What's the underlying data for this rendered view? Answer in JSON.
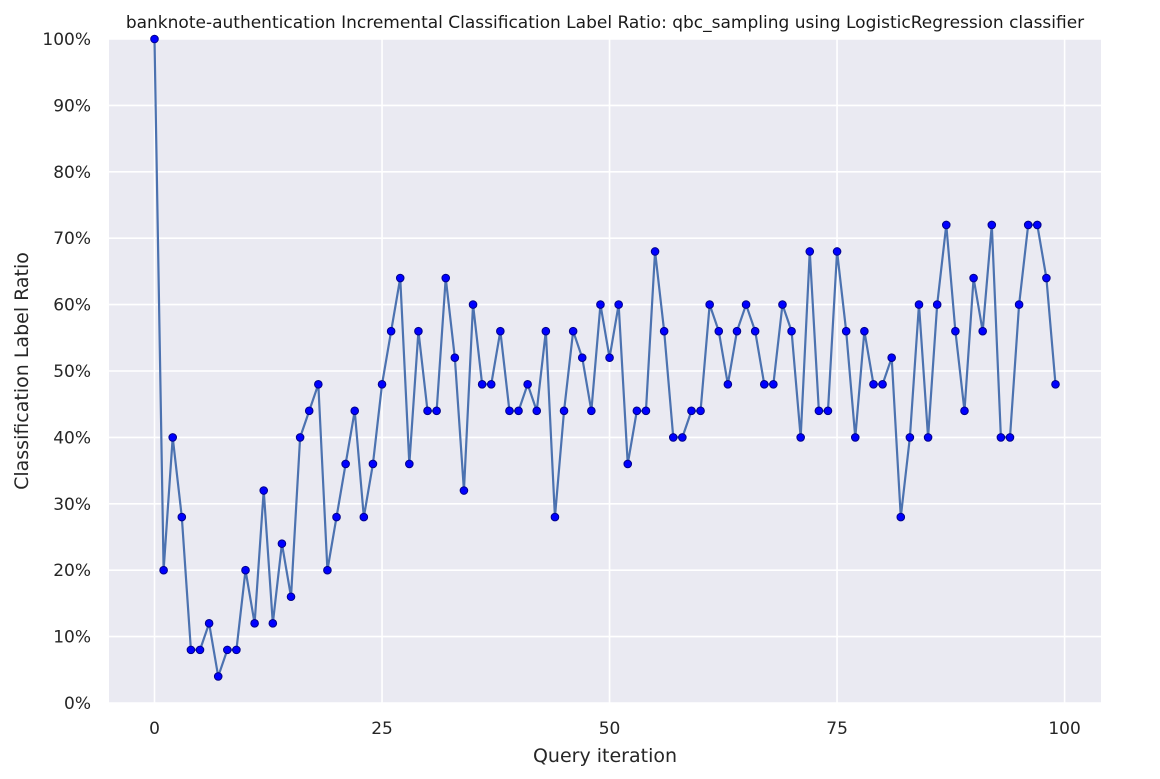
{
  "chart_data": {
    "type": "line",
    "title": "banknote-authentication Incremental Classification Label Ratio: qbc_sampling using LogisticRegression classifier",
    "xlabel": "Query iteration",
    "ylabel": "Classification Label Ratio",
    "xlim": [
      -5,
      104
    ],
    "ylim": [
      0,
      100
    ],
    "x_ticks": [
      0,
      25,
      50,
      75,
      100
    ],
    "x_tick_labels": [
      "0",
      "25",
      "50",
      "75",
      "100"
    ],
    "y_ticks": [
      0,
      10,
      20,
      30,
      40,
      50,
      60,
      70,
      80,
      90,
      100
    ],
    "y_tick_labels": [
      "0%",
      "10%",
      "20%",
      "30%",
      "40%",
      "50%",
      "60%",
      "70%",
      "80%",
      "90%",
      "100%"
    ],
    "grid": true,
    "colors": {
      "background": "#eaeaf2",
      "grid": "#ffffff",
      "line": "#4c72b0",
      "marker_fill": "#0000ff",
      "marker_edge": "#00008b"
    },
    "x": [
      0,
      1,
      2,
      3,
      4,
      5,
      6,
      7,
      8,
      9,
      10,
      11,
      12,
      13,
      14,
      15,
      16,
      17,
      18,
      19,
      20,
      21,
      22,
      23,
      24,
      25,
      26,
      27,
      28,
      29,
      30,
      31,
      32,
      33,
      34,
      35,
      36,
      37,
      38,
      39,
      40,
      41,
      42,
      43,
      44,
      45,
      46,
      47,
      48,
      49,
      50,
      51,
      52,
      53,
      54,
      55,
      56,
      57,
      58,
      59,
      60,
      61,
      62,
      63,
      64,
      65,
      66,
      67,
      68,
      69,
      70,
      71,
      72,
      73,
      74,
      75,
      76,
      77,
      78,
      79,
      80,
      81,
      82,
      83,
      84,
      85,
      86,
      87,
      88,
      89,
      90,
      91,
      92,
      93,
      94,
      95,
      96,
      97,
      98,
      99
    ],
    "series": [
      {
        "values": [
          100,
          20,
          40,
          28,
          8,
          8,
          12,
          4,
          8,
          8,
          20,
          12,
          32,
          12,
          24,
          16,
          40,
          44,
          48,
          20,
          28,
          36,
          44,
          28,
          36,
          48,
          56,
          64,
          36,
          56,
          44,
          44,
          64,
          52,
          32,
          60,
          48,
          48,
          56,
          44,
          44,
          48,
          44,
          56,
          28,
          44,
          56,
          52,
          44,
          60,
          52,
          60,
          36,
          44,
          44,
          68,
          56,
          40,
          40,
          44,
          44,
          60,
          56,
          48,
          56,
          60,
          56,
          48,
          48,
          60,
          56,
          40,
          68,
          44,
          44,
          68,
          56,
          40,
          56,
          48,
          48,
          52,
          28,
          40,
          60,
          40,
          60,
          72,
          56,
          44,
          64,
          56,
          72,
          40,
          40,
          60,
          72,
          72,
          64,
          48
        ]
      }
    ]
  }
}
